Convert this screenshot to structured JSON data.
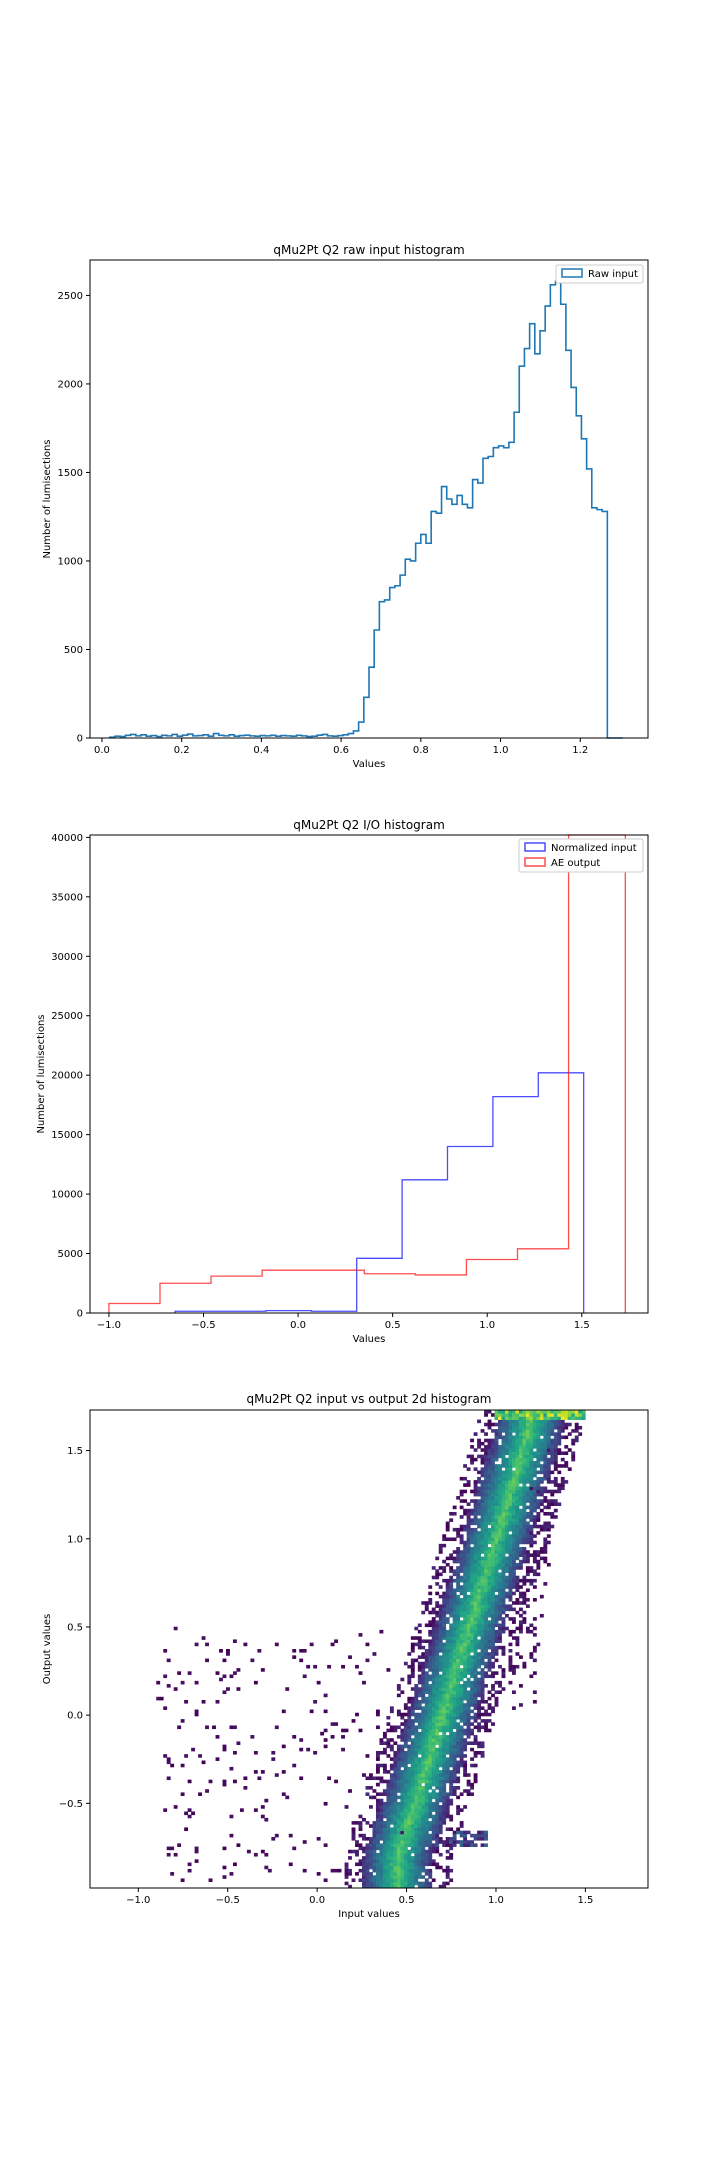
{
  "chart_data": [
    {
      "type": "histogram",
      "title": "qMu2Pt Q2 raw input histogram",
      "xlabel": "Values",
      "ylabel": "Number of lumisections",
      "xlim": [
        -0.03,
        1.37
      ],
      "ylim": [
        0,
        2700
      ],
      "xticks": [
        0.0,
        0.2,
        0.4,
        0.6,
        0.8,
        1.0,
        1.2
      ],
      "xtick_labels": [
        "0.0",
        "0.2",
        "0.4",
        "0.6",
        "0.8",
        "1.0",
        "1.2"
      ],
      "yticks": [
        0,
        500,
        1000,
        1500,
        2000,
        2500
      ],
      "ytick_labels": [
        "0",
        "500",
        "1000",
        "1500",
        "2000",
        "2500"
      ],
      "grid": false,
      "legend_position": "top-right",
      "series": [
        {
          "name": "Raw input",
          "color": "#1f77b4",
          "style": "step",
          "bin_edges": [
            0.02,
            0.033,
            0.046,
            0.059,
            0.072,
            0.085,
            0.098,
            0.111,
            0.124,
            0.137,
            0.15,
            0.163,
            0.176,
            0.189,
            0.202,
            0.215,
            0.228,
            0.241,
            0.254,
            0.267,
            0.28,
            0.293,
            0.306,
            0.319,
            0.332,
            0.345,
            0.358,
            0.371,
            0.384,
            0.397,
            0.41,
            0.423,
            0.436,
            0.449,
            0.462,
            0.475,
            0.488,
            0.501,
            0.514,
            0.527,
            0.54,
            0.553,
            0.566,
            0.579,
            0.592,
            0.605,
            0.618,
            0.631,
            0.644,
            0.657,
            0.67,
            0.683,
            0.696,
            0.709,
            0.722,
            0.735,
            0.748,
            0.761,
            0.774,
            0.787,
            0.8,
            0.813,
            0.826,
            0.839,
            0.852,
            0.865,
            0.878,
            0.891,
            0.904,
            0.917,
            0.93,
            0.943,
            0.956,
            0.969,
            0.982,
            0.995,
            1.008,
            1.021,
            1.034,
            1.047,
            1.06,
            1.073,
            1.086,
            1.099,
            1.112,
            1.125,
            1.138,
            1.151,
            1.164,
            1.177,
            1.19,
            1.203,
            1.216,
            1.229,
            1.242,
            1.255,
            1.268,
            1.281,
            1.294,
            1.307
          ],
          "counts": [
            5,
            10,
            8,
            15,
            20,
            12,
            18,
            10,
            14,
            8,
            15,
            12,
            20,
            10,
            16,
            22,
            12,
            14,
            18,
            10,
            25,
            15,
            12,
            18,
            10,
            14,
            16,
            12,
            10,
            14,
            12,
            15,
            10,
            14,
            12,
            10,
            15,
            12,
            8,
            10,
            16,
            20,
            12,
            10,
            14,
            18,
            25,
            40,
            90,
            230,
            400,
            610,
            770,
            780,
            850,
            860,
            920,
            1010,
            1000,
            1100,
            1150,
            1100,
            1280,
            1270,
            1420,
            1350,
            1320,
            1370,
            1320,
            1300,
            1460,
            1440,
            1580,
            1590,
            1640,
            1650,
            1640,
            1670,
            1840,
            2100,
            2200,
            2340,
            2170,
            2300,
            2440,
            2560,
            2580,
            2450,
            2190,
            1980,
            1820,
            1690,
            1520,
            1300,
            1290,
            1280,
            0,
            0,
            0
          ]
        }
      ]
    },
    {
      "type": "histogram",
      "title": "qMu2Pt Q2 I/O histogram",
      "xlabel": "Values",
      "ylabel": "Number of lumisections",
      "xlim": [
        -1.1,
        1.85
      ],
      "ylim": [
        0,
        40200
      ],
      "xticks": [
        -1.0,
        -0.5,
        0.0,
        0.5,
        1.0,
        1.5
      ],
      "xtick_labels": [
        "−1.0",
        "−0.5",
        "0.0",
        "0.5",
        "1.0",
        "1.5"
      ],
      "yticks": [
        0,
        5000,
        10000,
        15000,
        20000,
        25000,
        30000,
        35000,
        40000
      ],
      "ytick_labels": [
        "0",
        "5000",
        "10000",
        "15000",
        "20000",
        "25000",
        "30000",
        "35000",
        "40000"
      ],
      "grid": false,
      "legend_position": "top-right",
      "series": [
        {
          "name": "Normalized input",
          "color": "#0000ff",
          "style": "step",
          "bin_edges": [
            -0.65,
            -0.41,
            -0.17,
            0.07,
            0.31,
            0.55,
            0.79,
            1.03,
            1.27,
            1.51
          ],
          "counts": [
            150,
            150,
            200,
            150,
            4600,
            11200,
            14000,
            18200,
            20200
          ]
        },
        {
          "name": "AE output",
          "color": "#ff0000",
          "style": "step",
          "bin_edges": [
            -1.0,
            -0.73,
            -0.46,
            -0.19,
            0.08,
            0.35,
            0.62,
            0.89,
            1.16,
            1.43,
            1.73
          ],
          "counts": [
            800,
            2500,
            3100,
            3600,
            3600,
            3300,
            3200,
            4500,
            5400,
            40200
          ]
        }
      ]
    },
    {
      "type": "heatmap",
      "title": "qMu2Pt Q2 input vs output 2d histogram",
      "xlabel": "Input values",
      "ylabel": "Output values",
      "xlim": [
        -1.27,
        1.85
      ],
      "ylim": [
        -0.98,
        1.73
      ],
      "xticks": [
        -1.0,
        -0.5,
        0.0,
        0.5,
        1.0,
        1.5
      ],
      "xtick_labels": [
        "−1.0",
        "−0.5",
        "0.0",
        "0.5",
        "1.0",
        "1.5"
      ],
      "yticks": [
        -0.5,
        0.0,
        0.5,
        1.0,
        1.5
      ],
      "ytick_labels": [
        "−0.5",
        "0.0",
        "0.5",
        "1.0",
        "1.5"
      ],
      "colormap": "viridis",
      "grid": false,
      "dense_band": [
        [
          0.45,
          -0.8
        ],
        [
          0.55,
          -0.5
        ],
        [
          0.7,
          0.0
        ],
        [
          0.85,
          0.5
        ],
        [
          1.0,
          1.0
        ],
        [
          1.15,
          1.5
        ],
        [
          1.2,
          1.7
        ]
      ],
      "cluster": {
        "x_range": [
          0.45,
          0.95
        ],
        "y": -0.7
      },
      "saturation_row": {
        "x_range": [
          1.0,
          1.5
        ],
        "y": 1.7
      },
      "scatter_region": {
        "x_range": [
          -0.9,
          0.4
        ],
        "y_range": [
          -0.95,
          0.5
        ]
      }
    }
  ]
}
